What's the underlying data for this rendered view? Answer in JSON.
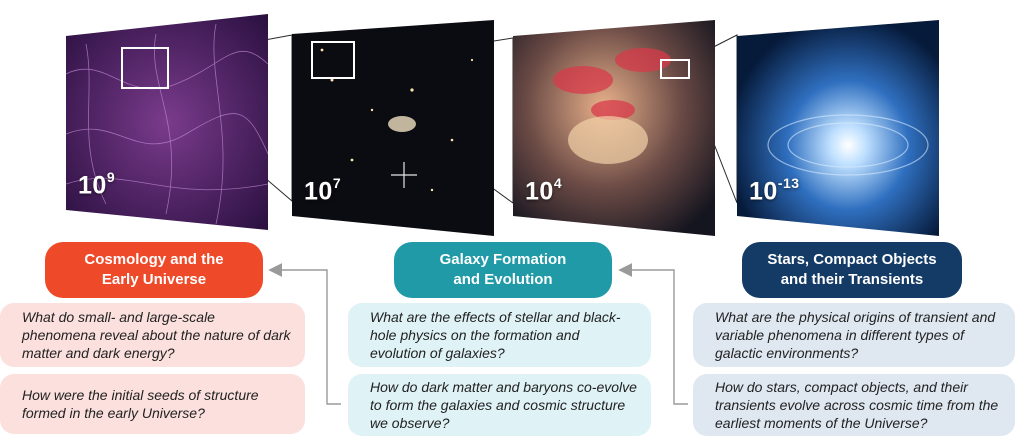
{
  "panels": [
    {
      "id": "cosmic-web",
      "base": "10",
      "exponent": "9"
    },
    {
      "id": "galaxy-field",
      "base": "10",
      "exponent": "7"
    },
    {
      "id": "merging-galaxies",
      "base": "10",
      "exponent": "4"
    },
    {
      "id": "compact-object",
      "base": "10",
      "exponent": "-13"
    }
  ],
  "themes": [
    {
      "title": "Cosmology and the\nEarly Universe",
      "color": "#ee4a2a",
      "question_bg": "#fbe0dd",
      "questions": [
        "What do small- and large-scale phenomena reveal about the nature of dark matter and dark energy?",
        "How were the initial seeds of structure formed in the early Universe?"
      ]
    },
    {
      "title": "Galaxy Formation\nand Evolution",
      "color": "#1f9aa6",
      "question_bg": "#dff2f6",
      "questions": [
        "What are the effects of stellar and black-hole physics on the formation and evolution of galaxies?",
        "How do dark matter and baryons co-evolve to form the galaxies and cosmic structure we observe?"
      ]
    },
    {
      "title": "Stars, Compact Objects\nand their Transients",
      "color": "#143a66",
      "question_bg": "#dfe7f1",
      "questions": [
        "What are the physical origins of transient and variable phenomena in different types of galactic environments?",
        "How do stars, compact objects, and their transients evolve across cosmic time from the earliest moments of the Universe?"
      ]
    }
  ],
  "colors": {
    "connector": "#9a9a9a",
    "zoom_line": "#ffffff",
    "zoom_outline": "#2b2b2b"
  }
}
